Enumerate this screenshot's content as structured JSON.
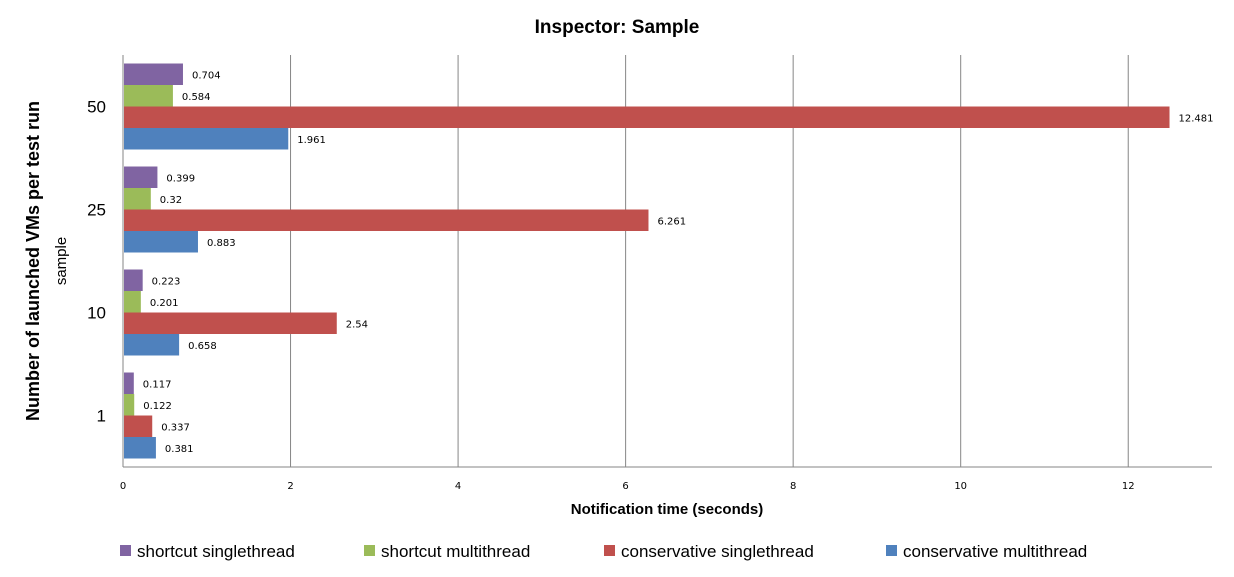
{
  "chart_data": {
    "type": "bar",
    "orientation": "horizontal",
    "title": "Inspector: Sample",
    "xlabel": "Notification time (seconds)",
    "ylabel": "Number of launched  VMs per test run",
    "ylabel_sub": "sample",
    "categories": [
      "1",
      "10",
      "25",
      "50"
    ],
    "xlim": [
      0,
      13
    ],
    "xticks": [
      0,
      2,
      4,
      6,
      8,
      10,
      12
    ],
    "grid": "vertical",
    "legend_position": "bottom",
    "series": [
      {
        "name": "shortcut singlethread",
        "color": "#8064A2",
        "values": [
          0.117,
          0.223,
          0.399,
          0.704
        ]
      },
      {
        "name": "shortcut multithread",
        "color": "#9BBB59",
        "values": [
          0.122,
          0.201,
          0.32,
          0.584
        ]
      },
      {
        "name": "conservative singlethread",
        "color": "#C0504D",
        "values": [
          0.337,
          2.54,
          6.261,
          12.481
        ]
      },
      {
        "name": "conservative multithread",
        "color": "#4F81BD",
        "values": [
          0.381,
          0.658,
          0.883,
          1.961
        ]
      }
    ]
  }
}
